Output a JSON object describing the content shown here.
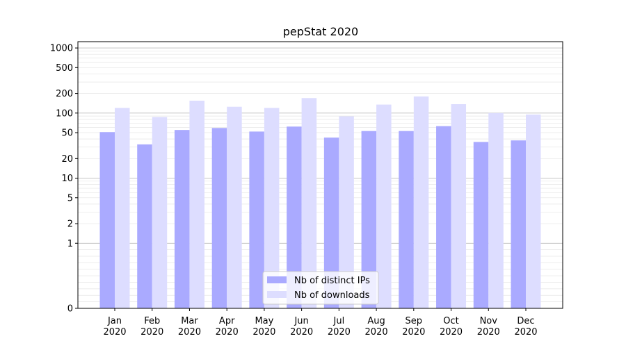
{
  "chart_data": {
    "type": "bar",
    "title": "pepStat 2020",
    "categories": [
      [
        "Jan",
        "2020"
      ],
      [
        "Feb",
        "2020"
      ],
      [
        "Mar",
        "2020"
      ],
      [
        "Apr",
        "2020"
      ],
      [
        "May",
        "2020"
      ],
      [
        "Jun",
        "2020"
      ],
      [
        "Jul",
        "2020"
      ],
      [
        "Aug",
        "2020"
      ],
      [
        "Sep",
        "2020"
      ],
      [
        "Oct",
        "2020"
      ],
      [
        "Nov",
        "2020"
      ],
      [
        "Dec",
        "2020"
      ]
    ],
    "series": [
      {
        "name": "Nb of distinct IPs",
        "color": "#aaaaff",
        "values": [
          51,
          33,
          55,
          59,
          52,
          62,
          42,
          53,
          53,
          63,
          36,
          38
        ]
      },
      {
        "name": "Nb of downloads",
        "color": "#ddddff",
        "values": [
          120,
          87,
          155,
          125,
          120,
          170,
          89,
          135,
          180,
          137,
          100,
          95
        ]
      }
    ],
    "y_scale": "symlog",
    "ylim": [
      0,
      1250
    ],
    "yticks": [
      0,
      1,
      2,
      5,
      10,
      20,
      50,
      100,
      200,
      500,
      1000
    ],
    "ytick_labels": [
      "0",
      "1",
      "2",
      "5",
      "10",
      "20",
      "50",
      "100",
      "200",
      "500",
      "1000"
    ],
    "grid": {
      "major": true,
      "minor": true
    },
    "legend": {
      "position": "lower-center"
    },
    "xlabel": "",
    "ylabel": ""
  }
}
